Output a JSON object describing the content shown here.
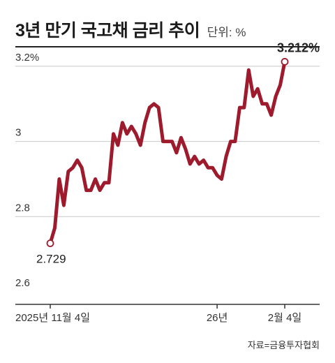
{
  "header": {
    "title": "3년 만기 국고채 금리 추이",
    "unit": "단위: %"
  },
  "source": "자료=금융투자협회",
  "colors": {
    "line": "#9e1b2e",
    "grid": "#c8c8c8",
    "axis": "#333333"
  },
  "chart_data": {
    "type": "line",
    "title": "3년 만기 국고채 금리 추이",
    "ylabel": "",
    "xlabel": "",
    "ylim": [
      2.6,
      3.25
    ],
    "y_ticks": [
      3.2,
      3.0,
      2.8,
      2.6
    ],
    "y_tick_labels": [
      "3.2%",
      "3",
      "2.8",
      "2.6"
    ],
    "x_tick_labels": [
      {
        "label": "2025년 11월 4일",
        "index": 0
      },
      {
        "label": "26년",
        "index": 37
      },
      {
        "label": "2월 4일",
        "index": 52
      }
    ],
    "grid": true,
    "annotations": [
      {
        "label": "2.729",
        "index": 0
      },
      {
        "label": "3.212%",
        "index": 52
      }
    ],
    "series": [
      {
        "values": [
          2.729,
          2.77,
          2.9,
          2.83,
          2.92,
          2.93,
          2.95,
          2.93,
          2.87,
          2.87,
          2.9,
          2.87,
          2.89,
          2.89,
          3.02,
          2.99,
          3.05,
          3.02,
          3.04,
          3.02,
          2.99,
          3.05,
          3.09,
          3.1,
          3.09,
          3.0,
          3.0,
          3.0,
          2.97,
          3.01,
          2.98,
          2.94,
          2.96,
          2.94,
          2.95,
          2.93,
          2.93,
          2.91,
          2.9,
          2.96,
          3.0,
          3.0,
          3.09,
          3.09,
          3.19,
          3.12,
          3.14,
          3.1,
          3.1,
          3.07,
          3.12,
          3.15,
          3.212
        ]
      }
    ]
  }
}
